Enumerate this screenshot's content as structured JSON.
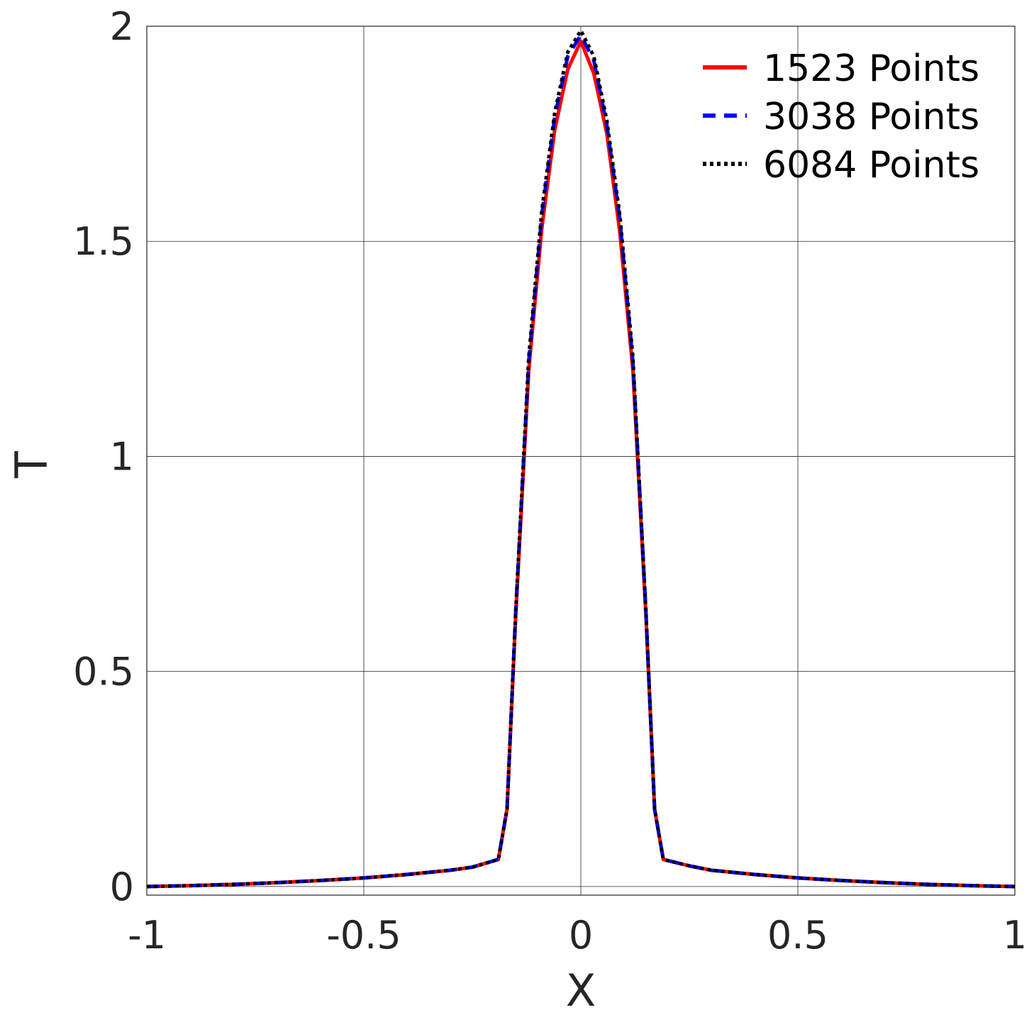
{
  "chart_data": {
    "type": "line",
    "xlabel": "X",
    "ylabel": "T",
    "x": [
      -1,
      -0.9,
      -0.8,
      -0.7,
      -0.6,
      -0.5,
      -0.4,
      -0.3,
      -0.25,
      -0.19,
      -0.17,
      -0.15,
      -0.12,
      -0.09,
      -0.06,
      -0.03,
      0,
      0.03,
      0.06,
      0.09,
      0.12,
      0.15,
      0.17,
      0.19,
      0.25,
      0.3,
      0.4,
      0.5,
      0.6,
      0.7,
      0.8,
      0.9,
      1
    ],
    "series": [
      {
        "name": "1523 Points",
        "color": "#ff0000",
        "dash": "solid",
        "values": [
          0,
          0.002,
          0.005,
          0.009,
          0.014,
          0.02,
          0.028,
          0.038,
          0.045,
          0.063,
          0.18,
          0.63,
          1.2,
          1.53,
          1.76,
          1.9,
          1.965,
          1.89,
          1.75,
          1.52,
          1.2,
          0.63,
          0.18,
          0.063,
          0.048,
          0.038,
          0.028,
          0.02,
          0.014,
          0.009,
          0.005,
          0.002,
          0
        ]
      },
      {
        "name": "3038 Points",
        "color": "#0000ff",
        "dash": "dashed",
        "values": [
          0,
          0.002,
          0.005,
          0.009,
          0.014,
          0.02,
          0.028,
          0.038,
          0.045,
          0.063,
          0.18,
          0.64,
          1.22,
          1.56,
          1.79,
          1.93,
          1.98,
          1.92,
          1.77,
          1.55,
          1.22,
          0.64,
          0.18,
          0.063,
          0.048,
          0.038,
          0.028,
          0.02,
          0.014,
          0.009,
          0.005,
          0.002,
          0
        ]
      },
      {
        "name": "6084 Points",
        "color": "#000000",
        "dash": "dotted",
        "values": [
          0,
          0.002,
          0.005,
          0.009,
          0.014,
          0.02,
          0.028,
          0.038,
          0.045,
          0.063,
          0.18,
          0.64,
          1.23,
          1.57,
          1.8,
          1.94,
          1.99,
          1.93,
          1.78,
          1.56,
          1.23,
          0.64,
          0.18,
          0.063,
          0.048,
          0.038,
          0.028,
          0.02,
          0.014,
          0.009,
          0.005,
          0.002,
          0
        ]
      }
    ],
    "xlim": [
      -1,
      1
    ],
    "ylim": [
      -0.02,
      2
    ],
    "xticks": [
      -1,
      -0.5,
      0,
      0.5,
      1
    ],
    "yticks": [
      0,
      0.5,
      1,
      1.5,
      2
    ],
    "grid": true,
    "legend": "upper right"
  }
}
